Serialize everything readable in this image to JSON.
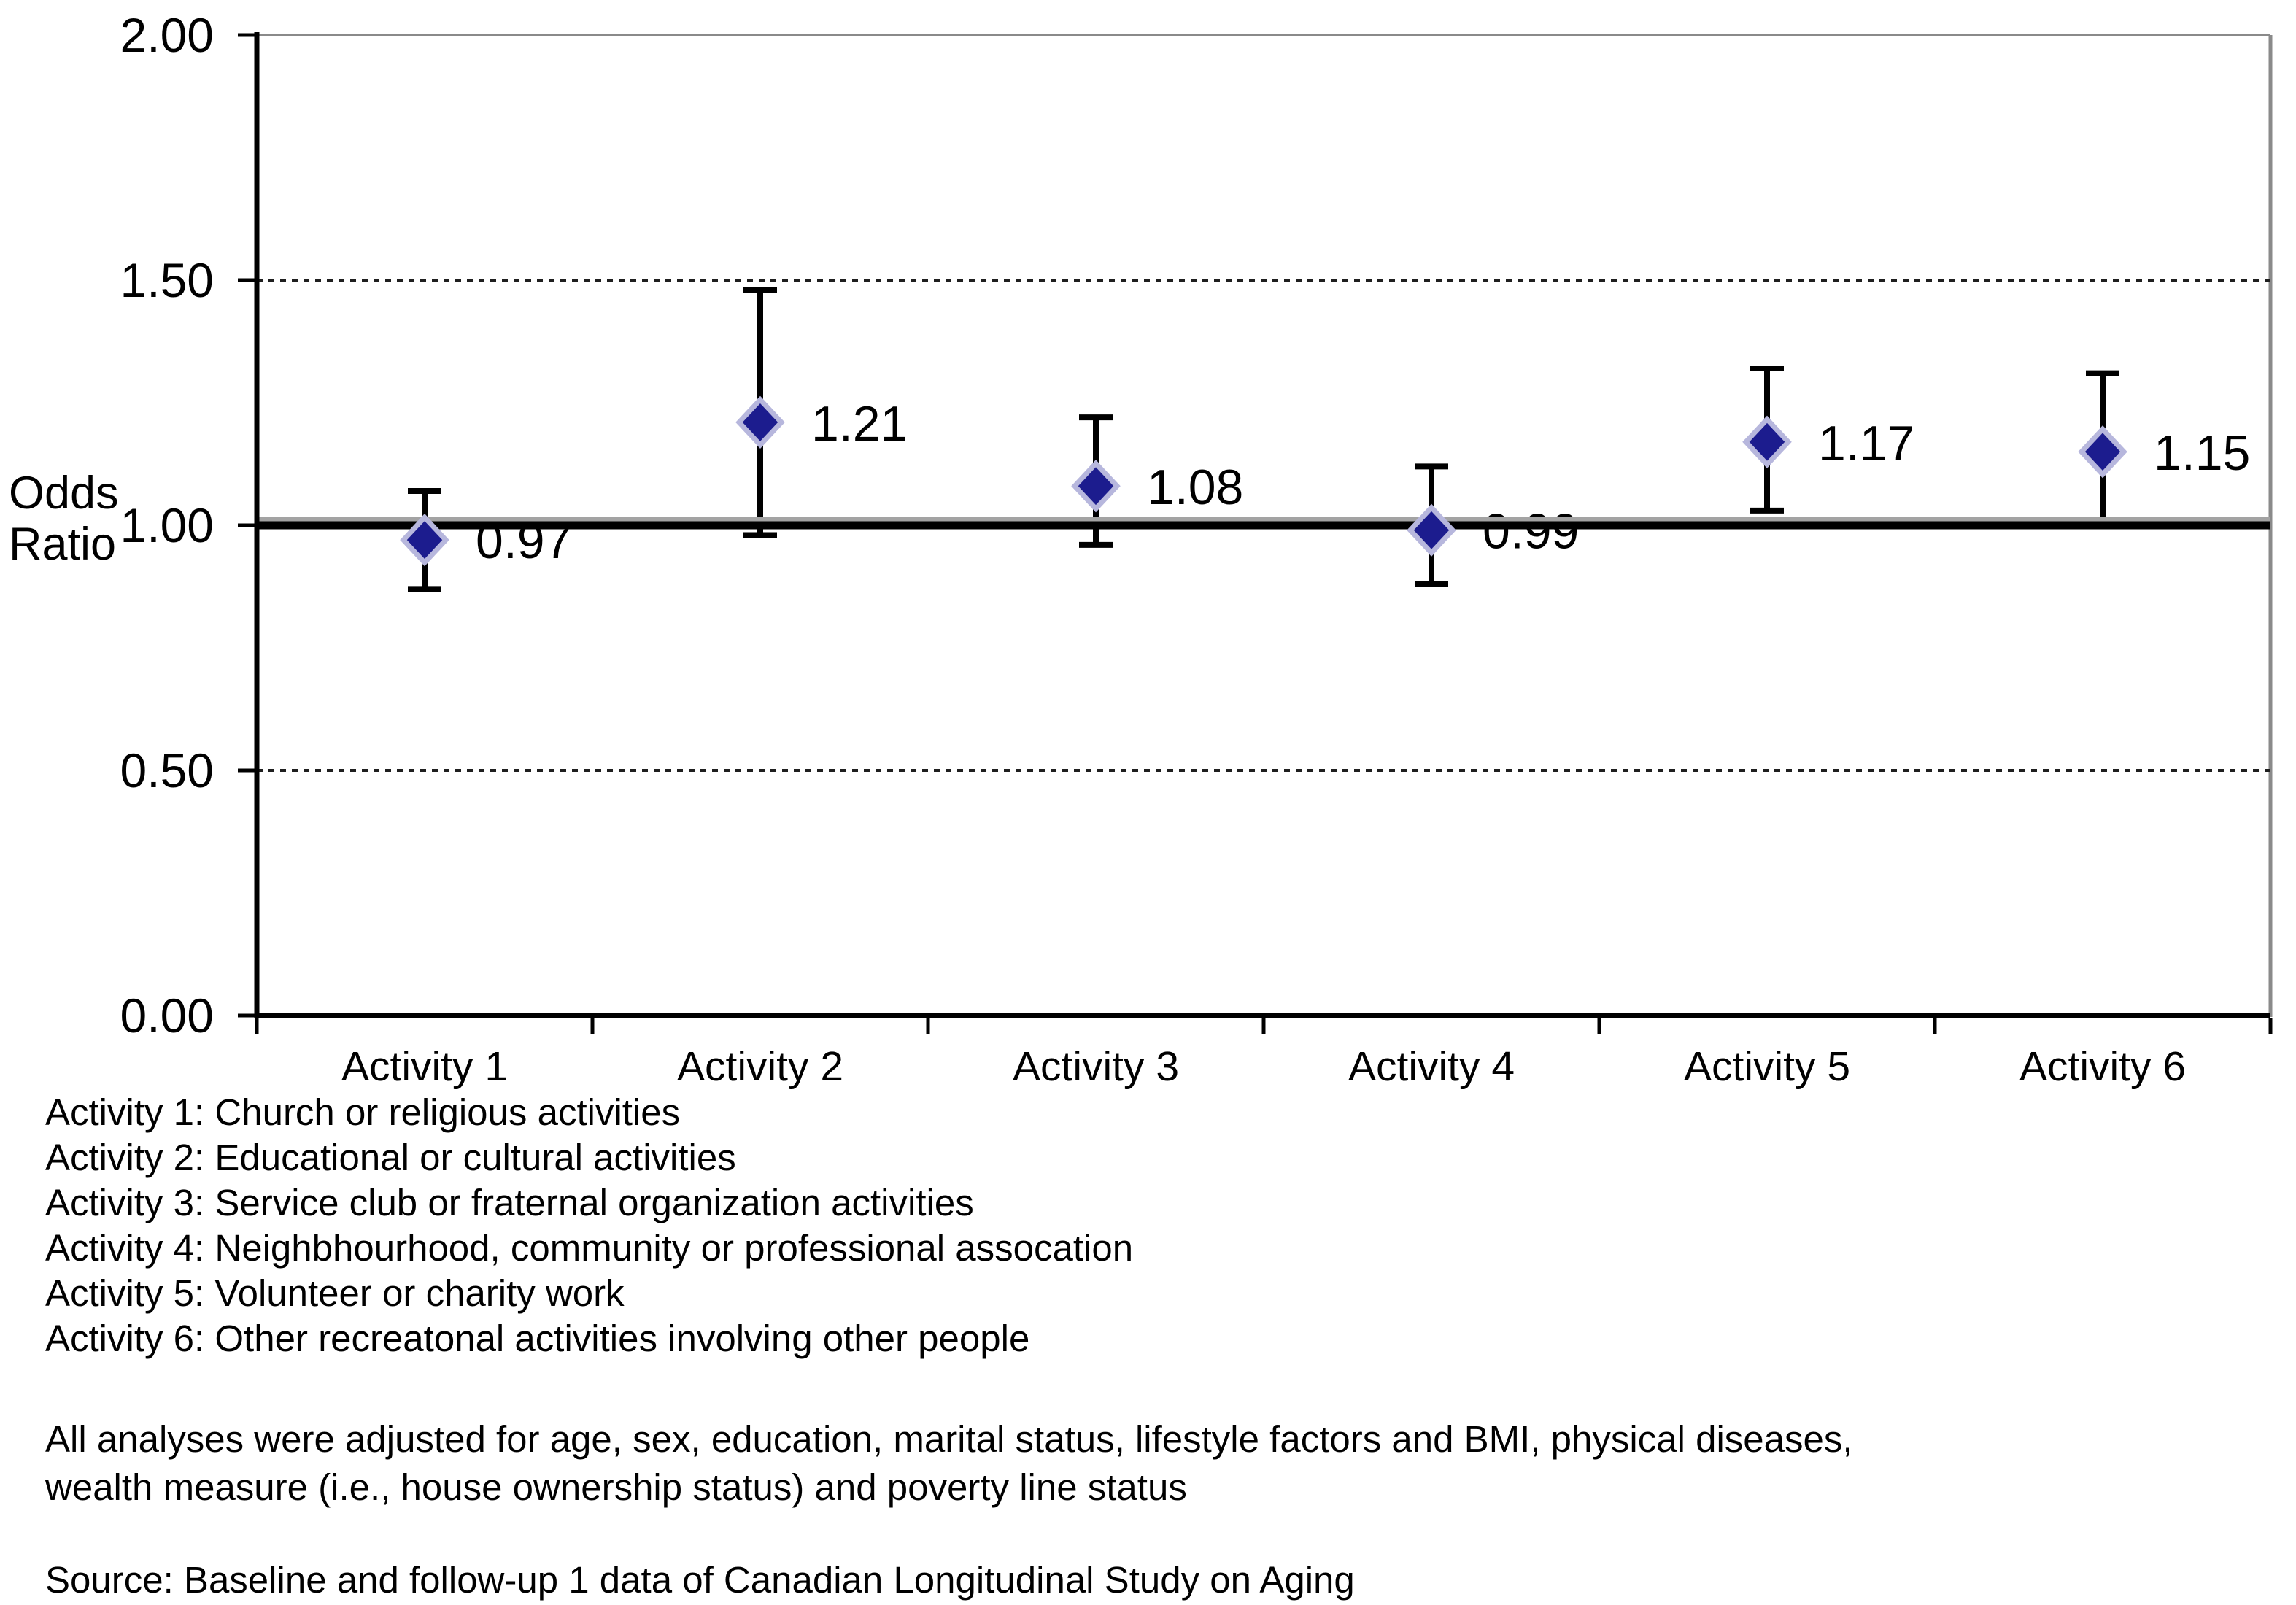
{
  "chart_data": {
    "type": "scatter",
    "subtype": "point-estimates-with-error-bars",
    "categories": [
      "Activity 1",
      "Activity 2",
      "Activity 3",
      "Activity 4",
      "Activity 5",
      "Activity 6"
    ],
    "series": [
      {
        "name": "Odds Ratio",
        "values": [
          0.97,
          1.21,
          1.08,
          0.99,
          1.17,
          1.15
        ],
        "ci_low": [
          0.87,
          0.98,
          0.96,
          0.88,
          1.03,
          1.0
        ],
        "ci_high": [
          1.07,
          1.48,
          1.22,
          1.12,
          1.32,
          1.31
        ],
        "point_labels": [
          "0.97",
          "1.21",
          "1.08",
          "0.99",
          "1.17",
          "1.15"
        ]
      }
    ],
    "ylabel_lines": [
      "Odds",
      "Ratio"
    ],
    "ylim": [
      0,
      2
    ],
    "yticks": [
      {
        "value": 0.0,
        "label": "0.00"
      },
      {
        "value": 0.5,
        "label": "0.50"
      },
      {
        "value": 1.0,
        "label": "1.00"
      },
      {
        "value": 1.5,
        "label": "1.50"
      },
      {
        "value": 2.0,
        "label": "2.00"
      }
    ],
    "reference_line": 1.0,
    "dashed_gridlines": [
      0.5,
      1.5
    ],
    "grid": "horizontal-dashed",
    "legend_position": "none",
    "marker": {
      "shape": "diamond",
      "color": "#1c1c8e",
      "halo": "#b7b7dd"
    },
    "colors": {
      "axis": "#000000",
      "border": "#8a8a8a",
      "dashed_grid": "#1f1f1f",
      "reference": "#000000",
      "reference_shadow": "#a3a3a3",
      "error_bar": "#000000",
      "text": "#000000"
    }
  },
  "legend": {
    "lines": [
      "Activity 1: Church or religious activities",
      "Activity 2: Educational or cultural activities",
      "Activity 3: Service club or fraternal organization activities",
      "Activity 4: Neighbhourhood, community or professional assocation",
      "Activity 5: Volunteer or charity work",
      "Activity 6: Other recreatonal activities involving other people"
    ]
  },
  "notes": {
    "adjustment_lines": [
      "All analyses were adjusted for age, sex, education, marital status, lifestyle factors and BMI, physical diseases,",
      "wealth measure (i.e., house ownership status) and poverty line status"
    ],
    "source": "Source: Baseline and follow-up 1 data of Canadian Longitudinal Study on Aging"
  }
}
